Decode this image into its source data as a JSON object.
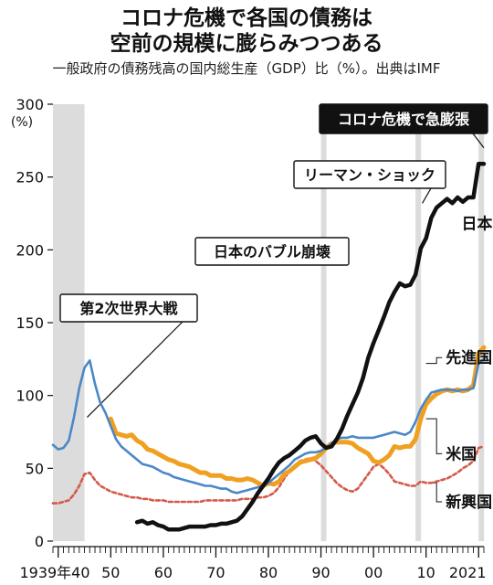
{
  "page": {
    "title_line1": "コロナ危機で各国の債務は",
    "title_line2": "空前の規模に膨らみつつある",
    "subtitle": "一般政府の債務残高の国内総生産（GDP）比（%）。出典はIMF"
  },
  "chart_data": {
    "type": "line",
    "title": "コロナ危機で各国の債務は空前の規模に膨らみつつある",
    "subtitle": "一般政府の債務残高の国内総生産（GDP）比（%）。出典はIMF",
    "ylabel": "(%)",
    "xlabel": "",
    "xlim": [
      1939,
      2021
    ],
    "ylim": [
      0,
      300
    ],
    "y_ticks": [
      0,
      50,
      100,
      150,
      200,
      250,
      300
    ],
    "x_tick_labels": [
      {
        "x": 1939,
        "label": "1939年40"
      },
      {
        "x": 1950,
        "label": "50"
      },
      {
        "x": 1960,
        "label": "60"
      },
      {
        "x": 1970,
        "label": "70"
      },
      {
        "x": 1980,
        "label": "80"
      },
      {
        "x": 1990,
        "label": "90"
      },
      {
        "x": 2000,
        "label": "00"
      },
      {
        "x": 2010,
        "label": "10"
      },
      {
        "x": 2020,
        "label": "2021"
      }
    ],
    "grid": false,
    "shaded_periods": [
      [
        1939,
        1945
      ],
      [
        1990,
        1991
      ],
      [
        2008,
        2009
      ],
      [
        2020,
        2021
      ]
    ],
    "annotations": [
      {
        "text": "第2次世界大戦",
        "x": 1945,
        "y": 135,
        "style": "box"
      },
      {
        "text": "日本のバブル崩壊",
        "x": 1991,
        "y": 190,
        "style": "box"
      },
      {
        "text": "リーマン・ショック",
        "x": 2009,
        "y": 240,
        "style": "box"
      },
      {
        "text": "コロナ危機で急膨張",
        "x": 2020,
        "y": 270,
        "style": "inverse"
      }
    ],
    "series": [
      {
        "name": "日本",
        "color": "#111111",
        "x": [
          1955,
          1956,
          1957,
          1958,
          1959,
          1960,
          1961,
          1962,
          1963,
          1964,
          1965,
          1966,
          1967,
          1968,
          1969,
          1970,
          1971,
          1972,
          1973,
          1974,
          1975,
          1976,
          1977,
          1978,
          1979,
          1980,
          1981,
          1982,
          1983,
          1984,
          1985,
          1986,
          1987,
          1988,
          1989,
          1990,
          1991,
          1992,
          1993,
          1994,
          1995,
          1996,
          1997,
          1998,
          1999,
          2000,
          2001,
          2002,
          2003,
          2004,
          2005,
          2006,
          2007,
          2008,
          2009,
          2010,
          2011,
          2012,
          2013,
          2014,
          2015,
          2016,
          2017,
          2018,
          2019,
          2020,
          2021
        ],
        "values": [
          13,
          14,
          12,
          13,
          11,
          10,
          8,
          8,
          8,
          9,
          10,
          10,
          10,
          10,
          11,
          11,
          12,
          12,
          13,
          14,
          17,
          22,
          27,
          33,
          38,
          43,
          49,
          54,
          57,
          59,
          62,
          65,
          69,
          71,
          72,
          67,
          64,
          65,
          70,
          77,
          86,
          94,
          102,
          112,
          126,
          136,
          145,
          154,
          164,
          171,
          177,
          175,
          176,
          183,
          201,
          208,
          222,
          229,
          232,
          235,
          232,
          236,
          233,
          236,
          236,
          259,
          259
        ]
      },
      {
        "name": "先進国",
        "color": "#4a88c6",
        "x": [
          1939,
          1940,
          1941,
          1942,
          1943,
          1944,
          1945,
          1946,
          1947,
          1948,
          1949,
          1950,
          1951,
          1952,
          1953,
          1954,
          1955,
          1956,
          1957,
          1958,
          1959,
          1960,
          1961,
          1962,
          1963,
          1964,
          1965,
          1966,
          1967,
          1968,
          1969,
          1970,
          1971,
          1972,
          1973,
          1974,
          1975,
          1976,
          1977,
          1978,
          1979,
          1980,
          1981,
          1982,
          1983,
          1984,
          1985,
          1986,
          1987,
          1988,
          1989,
          1990,
          1991,
          1992,
          1993,
          1994,
          1995,
          1996,
          1997,
          1998,
          1999,
          2000,
          2001,
          2002,
          2003,
          2004,
          2005,
          2006,
          2007,
          2008,
          2009,
          2010,
          2011,
          2012,
          2013,
          2014,
          2015,
          2016,
          2017,
          2018,
          2019,
          2020,
          2021
        ],
        "values": [
          66,
          63,
          64,
          69,
          85,
          105,
          119,
          124,
          108,
          95,
          88,
          79,
          70,
          65,
          62,
          59,
          56,
          53,
          52,
          51,
          49,
          47,
          46,
          44,
          43,
          42,
          41,
          40,
          39,
          38,
          38,
          37,
          36,
          36,
          34,
          33,
          34,
          35,
          36,
          37,
          38,
          40,
          43,
          46,
          49,
          52,
          56,
          58,
          60,
          61,
          61,
          62,
          64,
          67,
          70,
          71,
          71,
          72,
          71,
          71,
          71,
          71,
          72,
          73,
          74,
          75,
          74,
          73,
          75,
          82,
          91,
          97,
          102,
          103,
          104,
          104,
          104,
          103,
          104,
          104,
          105,
          122,
          125
        ]
      },
      {
        "name": "米国",
        "color": "#f0a020",
        "x": [
          1950,
          1951,
          1952,
          1953,
          1954,
          1955,
          1956,
          1957,
          1958,
          1959,
          1960,
          1961,
          1962,
          1963,
          1964,
          1965,
          1966,
          1967,
          1968,
          1969,
          1970,
          1971,
          1972,
          1973,
          1974,
          1975,
          1976,
          1977,
          1978,
          1979,
          1980,
          1981,
          1982,
          1983,
          1984,
          1985,
          1986,
          1987,
          1988,
          1989,
          1990,
          1991,
          1992,
          1993,
          1994,
          1995,
          1996,
          1997,
          1998,
          1999,
          2000,
          2001,
          2002,
          2003,
          2004,
          2005,
          2006,
          2007,
          2008,
          2009,
          2010,
          2011,
          2012,
          2013,
          2014,
          2015,
          2016,
          2017,
          2018,
          2019,
          2020,
          2021
        ],
        "values": [
          84,
          74,
          73,
          72,
          73,
          69,
          67,
          63,
          62,
          60,
          58,
          56,
          55,
          53,
          52,
          51,
          49,
          47,
          47,
          45,
          45,
          45,
          43,
          43,
          42,
          42,
          43,
          42,
          40,
          38,
          40,
          39,
          41,
          46,
          48,
          51,
          54,
          55,
          56,
          57,
          60,
          64,
          67,
          68,
          68,
          68,
          67,
          64,
          62,
          60,
          55,
          54,
          56,
          59,
          65,
          64,
          65,
          65,
          70,
          84,
          94,
          98,
          101,
          103,
          104,
          103,
          104,
          103,
          104,
          107,
          129,
          133
        ]
      },
      {
        "name": "新興国",
        "color": "#d45a4a",
        "x": [
          1939,
          1940,
          1941,
          1942,
          1943,
          1944,
          1945,
          1946,
          1947,
          1948,
          1949,
          1950,
          1951,
          1952,
          1953,
          1954,
          1955,
          1956,
          1957,
          1958,
          1959,
          1960,
          1961,
          1962,
          1963,
          1964,
          1965,
          1966,
          1967,
          1968,
          1969,
          1970,
          1971,
          1972,
          1973,
          1974,
          1975,
          1976,
          1977,
          1978,
          1979,
          1980,
          1981,
          1982,
          1983,
          1984,
          1985,
          1986,
          1987,
          1988,
          1989,
          1990,
          1991,
          1992,
          1993,
          1994,
          1995,
          1996,
          1997,
          1998,
          1999,
          2000,
          2001,
          2002,
          2003,
          2004,
          2005,
          2006,
          2007,
          2008,
          2009,
          2010,
          2011,
          2012,
          2013,
          2014,
          2015,
          2016,
          2017,
          2018,
          2019,
          2020,
          2021
        ],
        "values": [
          26,
          26,
          27,
          28,
          32,
          38,
          46,
          47,
          42,
          38,
          36,
          34,
          33,
          32,
          31,
          30,
          30,
          29,
          29,
          28,
          28,
          28,
          27,
          27,
          27,
          27,
          27,
          27,
          27,
          28,
          28,
          28,
          28,
          28,
          28,
          28,
          29,
          29,
          29,
          30,
          30,
          31,
          33,
          37,
          43,
          48,
          52,
          55,
          56,
          57,
          55,
          52,
          48,
          44,
          40,
          37,
          35,
          34,
          36,
          41,
          46,
          51,
          53,
          50,
          46,
          41,
          40,
          39,
          38,
          38,
          41,
          40,
          40,
          41,
          42,
          43,
          45,
          47,
          50,
          52,
          55,
          64,
          65
        ]
      }
    ],
    "series_labels": [
      {
        "name": "日本",
        "x": 2015,
        "y": 218
      },
      {
        "name": "先進国",
        "x": 2012,
        "y": 126
      },
      {
        "name": "米国",
        "x": 2012,
        "y": 60
      },
      {
        "name": "新興国",
        "x": 2012,
        "y": 27
      }
    ]
  }
}
